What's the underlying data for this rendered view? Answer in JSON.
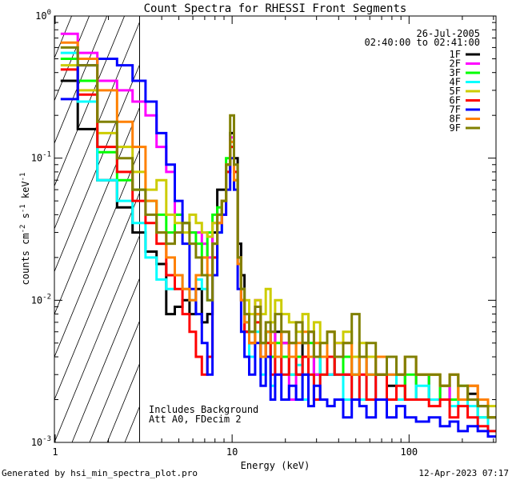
{
  "chart_data": {
    "type": "line",
    "title": "Count Spectra for RHESSI Front Segments",
    "xlabel": "Energy (keV)",
    "ylabel_parts": [
      "counts cm",
      "-2",
      " s",
      "-1",
      " keV",
      "-1"
    ],
    "xscale": "log",
    "yscale": "log",
    "xlim": [
      0.99,
      310
    ],
    "ylim": [
      0.001,
      1.0
    ],
    "x_ticks": [
      {
        "value": 1,
        "label": "1"
      },
      {
        "value": 10,
        "label": "10"
      },
      {
        "value": 100,
        "label": "100"
      }
    ],
    "y_ticks": [
      {
        "value": 1.0,
        "base": "10",
        "exp": "0"
      },
      {
        "value": 0.1,
        "base": "10",
        "exp": "-1"
      },
      {
        "value": 0.01,
        "base": "10",
        "exp": "-2"
      },
      {
        "value": 0.001,
        "base": "10",
        "exp": "-3"
      }
    ],
    "background_region": {
      "x_max_keV": 3.0
    },
    "legend": {
      "position": "top-right",
      "date": "26-Jul-2005",
      "time_range": "02:40:00 to 02:41:00"
    },
    "annotations": [
      "Includes Background",
      "Att A0, FDecim 2"
    ],
    "energy_bins_keV": [
      1.2,
      1.5,
      2.0,
      2.5,
      3.0,
      3.5,
      4.0,
      4.5,
      5.0,
      5.5,
      6.0,
      6.5,
      7.0,
      7.5,
      8.0,
      8.5,
      9.0,
      9.5,
      10.0,
      10.5,
      11.0,
      11.5,
      12.0,
      13,
      14,
      15,
      16,
      17,
      18,
      20,
      22,
      24,
      26,
      28,
      30,
      33,
      36,
      40,
      45,
      50,
      55,
      60,
      70,
      80,
      90,
      100,
      120,
      140,
      160,
      180,
      200,
      230,
      260,
      300
    ],
    "series": [
      {
        "name": "1F",
        "color": "#000000",
        "values": [
          0.35,
          0.16,
          0.07,
          0.045,
          0.03,
          0.022,
          0.018,
          0.008,
          0.009,
          0.01,
          0.008,
          0.012,
          0.007,
          0.008,
          0.03,
          0.06,
          0.06,
          0.09,
          0.15,
          0.1,
          0.025,
          0.015,
          0.006,
          0.005,
          0.008,
          0.004,
          0.006,
          0.004,
          0.006,
          0.005,
          0.004,
          0.003,
          0.005,
          0.004,
          0.003,
          0.004,
          0.003,
          0.004,
          0.003,
          0.003,
          0.004,
          0.003,
          0.003,
          0.0025,
          0.003,
          0.002,
          0.003,
          0.002,
          0.0025,
          0.002,
          0.002,
          0.0022,
          0.0018,
          0.0015
        ]
      },
      {
        "name": "2F",
        "color": "#ff00ff",
        "values": [
          0.75,
          0.55,
          0.35,
          0.3,
          0.25,
          0.2,
          0.12,
          0.08,
          0.04,
          0.035,
          0.03,
          0.03,
          0.025,
          0.02,
          0.035,
          0.04,
          0.04,
          0.08,
          0.14,
          0.08,
          0.02,
          0.012,
          0.008,
          0.006,
          0.01,
          0.005,
          0.004,
          0.006,
          0.003,
          0.005,
          0.002,
          0.004,
          0.003,
          0.006,
          0.003,
          0.004,
          0.003,
          0.005,
          0.003,
          0.004,
          0.003,
          0.004,
          0.002,
          0.003,
          0.003,
          0.004,
          0.002,
          0.003,
          0.002,
          0.003,
          0.002,
          0.0025,
          0.002,
          0.0015
        ]
      },
      {
        "name": "3F",
        "color": "#00ff00",
        "values": [
          0.5,
          0.35,
          0.11,
          0.07,
          0.06,
          0.05,
          0.04,
          0.03,
          0.04,
          0.035,
          0.03,
          0.025,
          0.02,
          0.03,
          0.04,
          0.045,
          0.05,
          0.1,
          0.12,
          0.07,
          0.018,
          0.01,
          0.007,
          0.006,
          0.008,
          0.005,
          0.006,
          0.004,
          0.005,
          0.004,
          0.003,
          0.004,
          0.003,
          0.005,
          0.004,
          0.003,
          0.004,
          0.003,
          0.004,
          0.003,
          0.004,
          0.003,
          0.003,
          0.004,
          0.002,
          0.003,
          0.002,
          0.003,
          0.002,
          0.002,
          0.0025,
          0.002,
          0.0015,
          0.0015
        ]
      },
      {
        "name": "4F",
        "color": "#00ffff",
        "values": [
          0.55,
          0.25,
          0.07,
          0.05,
          0.035,
          0.02,
          0.014,
          0.012,
          0.015,
          0.012,
          0.01,
          0.014,
          0.012,
          0.01,
          0.02,
          0.03,
          0.05,
          0.09,
          0.12,
          0.08,
          0.02,
          0.012,
          0.007,
          0.004,
          0.006,
          0.003,
          0.005,
          0.0025,
          0.004,
          0.003,
          0.003,
          0.0035,
          0.002,
          0.003,
          0.002,
          0.004,
          0.003,
          0.003,
          0.002,
          0.003,
          0.002,
          0.003,
          0.002,
          0.003,
          0.002,
          0.002,
          0.0025,
          0.002,
          0.002,
          0.0018,
          0.002,
          0.0018,
          0.0015,
          0.0012
        ]
      },
      {
        "name": "5F",
        "color": "#cccc00",
        "values": [
          0.45,
          0.3,
          0.15,
          0.12,
          0.08,
          0.06,
          0.07,
          0.04,
          0.035,
          0.03,
          0.04,
          0.035,
          0.03,
          0.028,
          0.035,
          0.04,
          0.05,
          0.09,
          0.13,
          0.07,
          0.02,
          0.012,
          0.01,
          0.008,
          0.01,
          0.008,
          0.012,
          0.007,
          0.01,
          0.008,
          0.007,
          0.006,
          0.008,
          0.006,
          0.007,
          0.005,
          0.006,
          0.005,
          0.006,
          0.004,
          0.005,
          0.004,
          0.003,
          0.004,
          0.003,
          0.004,
          0.003,
          0.003,
          0.0025,
          0.003,
          0.002,
          0.0025,
          0.002,
          0.0018
        ]
      },
      {
        "name": "6F",
        "color": "#ff0000",
        "values": [
          0.42,
          0.28,
          0.12,
          0.08,
          0.05,
          0.035,
          0.025,
          0.015,
          0.012,
          0.008,
          0.006,
          0.004,
          0.003,
          0.004,
          0.02,
          0.035,
          0.05,
          0.08,
          0.12,
          0.08,
          0.02,
          0.01,
          0.006,
          0.005,
          0.007,
          0.004,
          0.005,
          0.003,
          0.004,
          0.003,
          0.005,
          0.003,
          0.004,
          0.003,
          0.002,
          0.003,
          0.004,
          0.003,
          0.003,
          0.002,
          0.003,
          0.002,
          0.003,
          0.002,
          0.0025,
          0.002,
          0.002,
          0.0018,
          0.002,
          0.0015,
          0.0018,
          0.0015,
          0.0013,
          0.0012
        ]
      },
      {
        "name": "7F",
        "color": "#0000ff",
        "values": [
          0.26,
          0.45,
          0.5,
          0.45,
          0.35,
          0.25,
          0.15,
          0.09,
          0.05,
          0.025,
          0.012,
          0.008,
          0.005,
          0.003,
          0.015,
          0.03,
          0.04,
          0.06,
          0.1,
          0.06,
          0.012,
          0.006,
          0.004,
          0.003,
          0.005,
          0.0025,
          0.004,
          0.002,
          0.003,
          0.002,
          0.0025,
          0.002,
          0.003,
          0.0018,
          0.0025,
          0.002,
          0.0018,
          0.002,
          0.0015,
          0.002,
          0.0018,
          0.0015,
          0.002,
          0.0015,
          0.0018,
          0.0015,
          0.0014,
          0.0015,
          0.0013,
          0.0014,
          0.0012,
          0.0013,
          0.0012,
          0.0011
        ]
      },
      {
        "name": "8F",
        "color": "#ff8000",
        "values": [
          0.65,
          0.5,
          0.3,
          0.18,
          0.12,
          0.05,
          0.03,
          0.02,
          0.015,
          0.012,
          0.01,
          0.015,
          0.02,
          0.015,
          0.025,
          0.035,
          0.05,
          0.09,
          0.13,
          0.07,
          0.018,
          0.01,
          0.007,
          0.005,
          0.008,
          0.004,
          0.006,
          0.005,
          0.004,
          0.006,
          0.004,
          0.005,
          0.006,
          0.004,
          0.005,
          0.004,
          0.006,
          0.004,
          0.005,
          0.003,
          0.004,
          0.003,
          0.004,
          0.003,
          0.003,
          0.004,
          0.003,
          0.003,
          0.0025,
          0.003,
          0.002,
          0.0025,
          0.002,
          0.0015
        ]
      },
      {
        "name": "9F",
        "color": "#808000",
        "values": [
          0.6,
          0.45,
          0.18,
          0.1,
          0.06,
          0.04,
          0.03,
          0.025,
          0.03,
          0.035,
          0.025,
          0.02,
          0.015,
          0.01,
          0.025,
          0.04,
          0.05,
          0.09,
          0.2,
          0.09,
          0.02,
          0.012,
          0.008,
          0.006,
          0.009,
          0.005,
          0.007,
          0.006,
          0.008,
          0.006,
          0.005,
          0.007,
          0.005,
          0.006,
          0.004,
          0.005,
          0.006,
          0.004,
          0.005,
          0.008,
          0.004,
          0.005,
          0.003,
          0.004,
          0.003,
          0.004,
          0.003,
          0.003,
          0.0025,
          0.003,
          0.0025,
          0.002,
          0.0018,
          0.0015
        ]
      }
    ]
  },
  "footer": {
    "generated_by": "Generated by hsi_min_spectra_plot.pro",
    "timestamp": "12-Apr-2023 07:17"
  }
}
